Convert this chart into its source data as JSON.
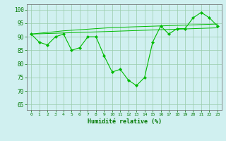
{
  "x": [
    0,
    1,
    2,
    3,
    4,
    5,
    6,
    7,
    8,
    9,
    10,
    11,
    12,
    13,
    14,
    15,
    16,
    17,
    18,
    19,
    20,
    21,
    22,
    23
  ],
  "line_main": [
    91,
    88,
    87,
    90,
    91,
    85,
    86,
    90,
    90,
    83,
    77,
    78,
    74,
    72,
    75,
    88,
    94,
    91,
    93,
    93,
    97,
    99,
    97,
    94
  ],
  "line_upper": [
    91,
    91.3,
    91.6,
    91.9,
    92.2,
    92.4,
    92.6,
    92.8,
    93.0,
    93.2,
    93.4,
    93.5,
    93.6,
    93.7,
    93.8,
    93.9,
    94.0,
    94.1,
    94.2,
    94.3,
    94.4,
    94.5,
    94.6,
    94.7
  ],
  "line_lower": [
    91,
    91.1,
    91.2,
    91.3,
    91.4,
    91.5,
    91.6,
    91.7,
    91.8,
    91.9,
    92.0,
    92.1,
    92.2,
    92.3,
    92.4,
    92.5,
    92.6,
    92.7,
    92.8,
    92.9,
    93.0,
    93.1,
    93.2,
    93.3
  ],
  "line_color": "#00bb00",
  "bg_color": "#d0f0f0",
  "grid_color": "#99ccaa",
  "xlabel": "Humidité relative (%)",
  "ylabel_ticks": [
    65,
    70,
    75,
    80,
    85,
    90,
    95,
    100
  ],
  "xlim": [
    -0.5,
    23.5
  ],
  "ylim": [
    63,
    102
  ]
}
